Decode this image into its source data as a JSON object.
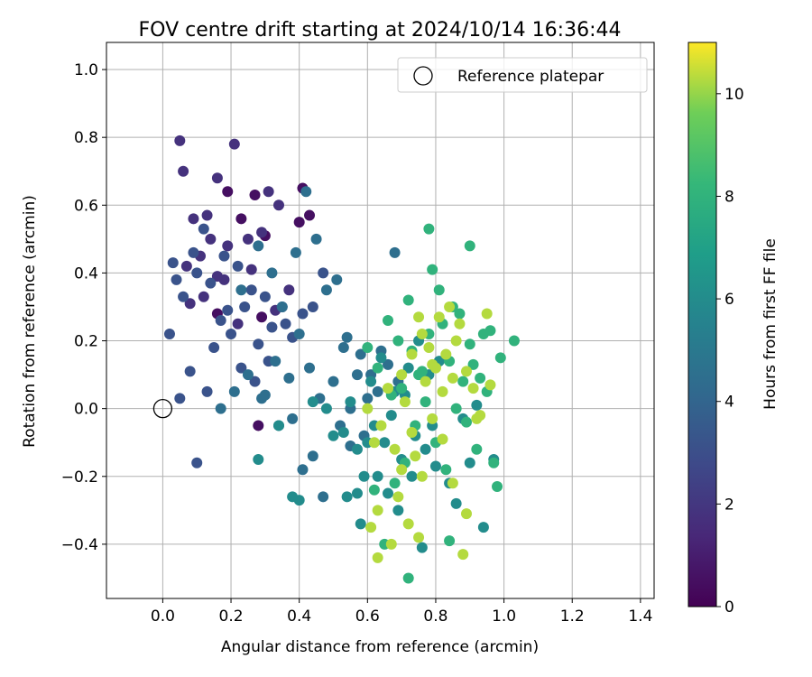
{
  "chart_data": {
    "type": "scatter",
    "title": "FOV centre drift starting at 2024/10/14 16:36:44",
    "xlabel": "Angular distance from reference (arcmin)",
    "ylabel": "Rotation from reference (arcmin)",
    "xlim": [
      -0.165,
      1.44
    ],
    "ylim": [
      -0.56,
      1.08
    ],
    "xticks": [
      "0.0",
      "0.2",
      "0.4",
      "0.6",
      "0.8",
      "1.0",
      "1.2",
      "1.4"
    ],
    "xtick_values": [
      0.0,
      0.2,
      0.4,
      0.6,
      0.8,
      1.0,
      1.2,
      1.4
    ],
    "yticks": [
      "−0.4",
      "−0.2",
      "0.0",
      "0.2",
      "0.4",
      "0.6",
      "0.8",
      "1.0"
    ],
    "ytick_values": [
      -0.4,
      -0.2,
      0.0,
      0.2,
      0.4,
      0.6,
      0.8,
      1.0
    ],
    "grid": true,
    "legend": {
      "placement": "top-right",
      "entries": [
        "Reference platepar"
      ]
    },
    "reference_point": {
      "x": 0.0,
      "y": 0.0
    },
    "colorbar": {
      "label": "Hours from first FF file",
      "range": [
        0,
        11
      ],
      "ticks": [
        "0",
        "2",
        "4",
        "6",
        "8",
        "10"
      ],
      "tick_values": [
        0,
        2,
        4,
        6,
        8,
        10
      ],
      "colormap": "viridis"
    },
    "series": [
      {
        "hours": 0.5,
        "x": [
          0.19,
          0.27,
          0.41,
          0.4,
          0.43,
          0.23,
          0.16,
          0.29,
          0.3,
          0.28
        ],
        "y": [
          0.64,
          0.63,
          0.65,
          0.55,
          0.57,
          0.56,
          0.28,
          0.27,
          0.51,
          -0.05
        ]
      },
      {
        "hours": 1.8,
        "x": [
          0.05,
          0.06,
          0.09,
          0.13,
          0.16,
          0.19,
          0.21,
          0.25,
          0.29,
          0.31,
          0.34,
          0.37,
          0.11,
          0.07,
          0.14,
          0.18,
          0.33,
          0.22,
          0.12,
          0.08,
          0.16,
          0.26
        ],
        "y": [
          0.79,
          0.7,
          0.56,
          0.57,
          0.68,
          0.48,
          0.78,
          0.5,
          0.52,
          0.64,
          0.6,
          0.35,
          0.45,
          0.42,
          0.5,
          0.38,
          0.29,
          0.25,
          0.33,
          0.31,
          0.39,
          0.41
        ]
      },
      {
        "hours": 3.2,
        "x": [
          0.03,
          0.04,
          0.06,
          0.09,
          0.1,
          0.12,
          0.14,
          0.17,
          0.18,
          0.2,
          0.22,
          0.24,
          0.26,
          0.28,
          0.3,
          0.32,
          0.35,
          0.38,
          0.41,
          0.44,
          0.47,
          0.02,
          0.08,
          0.13,
          0.15,
          0.19,
          0.23,
          0.27,
          0.31,
          0.36,
          0.1,
          0.05
        ],
        "y": [
          0.43,
          0.38,
          0.33,
          0.46,
          0.4,
          0.53,
          0.37,
          0.26,
          0.45,
          0.22,
          0.42,
          0.3,
          0.35,
          0.19,
          0.33,
          0.24,
          0.3,
          0.21,
          0.28,
          0.3,
          0.4,
          0.22,
          0.11,
          0.05,
          0.18,
          0.29,
          0.12,
          0.08,
          0.14,
          0.25,
          -0.16,
          0.03
        ]
      },
      {
        "hours": 4.5,
        "x": [
          0.17,
          0.21,
          0.25,
          0.29,
          0.33,
          0.37,
          0.4,
          0.43,
          0.46,
          0.5,
          0.53,
          0.55,
          0.58,
          0.61,
          0.63,
          0.66,
          0.69,
          0.23,
          0.28,
          0.32,
          0.35,
          0.39,
          0.42,
          0.45,
          0.48,
          0.51,
          0.54,
          0.57,
          0.6,
          0.64,
          0.68,
          0.3,
          0.34,
          0.38,
          0.41,
          0.44,
          0.47,
          0.52,
          0.55,
          0.59
        ],
        "y": [
          0.0,
          0.05,
          0.1,
          0.03,
          0.14,
          0.09,
          0.22,
          0.12,
          0.03,
          0.08,
          0.18,
          0.0,
          0.16,
          0.1,
          0.05,
          0.13,
          0.08,
          0.35,
          0.48,
          0.4,
          0.3,
          0.46,
          0.64,
          0.5,
          0.35,
          0.38,
          0.21,
          0.1,
          0.03,
          0.17,
          0.46,
          0.04,
          -0.05,
          -0.03,
          -0.18,
          -0.14,
          -0.26,
          -0.05,
          -0.11,
          -0.08
        ]
      },
      {
        "hours": 6.0,
        "x": [
          0.28,
          0.34,
          0.38,
          0.4,
          0.44,
          0.48,
          0.5,
          0.54,
          0.57,
          0.59,
          0.62,
          0.65,
          0.67,
          0.7,
          0.73,
          0.76,
          0.79,
          0.58,
          0.6,
          0.63,
          0.66,
          0.69,
          0.71,
          0.74,
          0.77,
          0.8,
          0.84,
          0.88,
          0.92,
          0.55,
          0.61,
          0.64,
          0.68,
          0.72,
          0.75,
          0.78,
          0.81,
          0.86,
          0.9,
          0.94,
          0.97,
          0.53,
          0.57
        ],
        "y": [
          -0.15,
          -0.05,
          -0.26,
          -0.27,
          0.02,
          0.0,
          -0.08,
          -0.26,
          -0.12,
          -0.2,
          -0.05,
          -0.1,
          -0.02,
          -0.15,
          -0.2,
          -0.41,
          -0.05,
          -0.34,
          -0.1,
          -0.2,
          -0.25,
          -0.3,
          0.04,
          -0.08,
          -0.12,
          -0.17,
          -0.22,
          -0.03,
          0.01,
          0.02,
          0.08,
          0.15,
          0.05,
          0.12,
          0.2,
          0.1,
          0.14,
          -0.28,
          -0.16,
          -0.35,
          -0.15,
          -0.07,
          -0.25
        ]
      },
      {
        "hours": 8.0,
        "x": [
          0.6,
          0.63,
          0.66,
          0.69,
          0.72,
          0.75,
          0.78,
          0.81,
          0.84,
          0.87,
          0.9,
          0.93,
          0.96,
          0.99,
          1.03,
          0.67,
          0.7,
          0.73,
          0.76,
          0.79,
          0.82,
          0.85,
          0.88,
          0.91,
          0.94,
          0.68,
          0.71,
          0.74,
          0.77,
          0.8,
          0.83,
          0.86,
          0.89,
          0.92,
          0.95,
          0.98,
          0.62,
          0.65,
          0.72,
          0.78,
          0.84,
          0.9,
          0.97
        ],
        "y": [
          0.18,
          0.12,
          0.26,
          0.2,
          0.32,
          0.1,
          0.22,
          0.35,
          0.14,
          0.28,
          0.19,
          0.09,
          0.23,
          0.15,
          0.2,
          0.04,
          0.06,
          0.17,
          0.11,
          0.41,
          0.25,
          0.3,
          0.08,
          0.13,
          0.22,
          -0.22,
          -0.16,
          -0.05,
          0.02,
          -0.1,
          -0.18,
          0.0,
          -0.04,
          -0.12,
          0.05,
          -0.23,
          -0.24,
          -0.4,
          -0.5,
          0.53,
          -0.39,
          0.48,
          -0.16
        ]
      },
      {
        "hours": 10.3,
        "x": [
          0.6,
          0.62,
          0.64,
          0.66,
          0.68,
          0.7,
          0.71,
          0.73,
          0.74,
          0.76,
          0.77,
          0.79,
          0.8,
          0.82,
          0.83,
          0.85,
          0.87,
          0.89,
          0.91,
          0.93,
          0.95,
          0.96,
          0.61,
          0.63,
          0.67,
          0.69,
          0.72,
          0.75,
          0.78,
          0.81,
          0.84,
          0.86,
          0.88,
          0.92,
          0.7,
          0.73,
          0.76,
          0.79,
          0.82,
          0.85,
          0.89,
          0.63,
          0.75
        ],
        "y": [
          0.0,
          -0.1,
          -0.05,
          0.06,
          -0.12,
          -0.18,
          0.02,
          -0.07,
          -0.14,
          -0.2,
          0.08,
          -0.03,
          0.12,
          -0.09,
          0.16,
          -0.22,
          0.25,
          -0.31,
          0.06,
          -0.02,
          0.28,
          0.07,
          -0.35,
          -0.3,
          -0.4,
          -0.26,
          -0.34,
          -0.38,
          0.18,
          0.27,
          0.3,
          0.2,
          -0.43,
          -0.03,
          0.1,
          0.16,
          0.22,
          0.13,
          0.05,
          0.09,
          0.11,
          -0.44,
          0.27
        ]
      }
    ]
  }
}
